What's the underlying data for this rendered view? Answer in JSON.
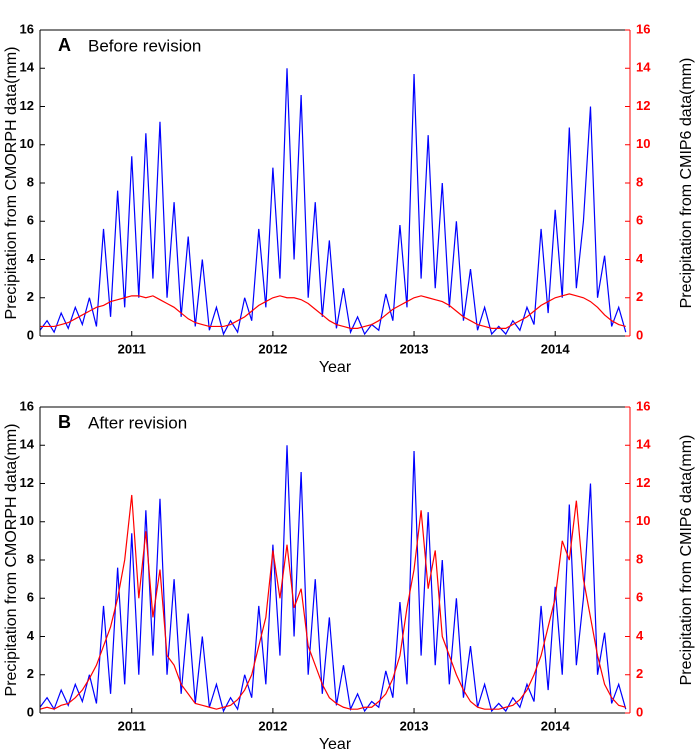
{
  "chart_data": [
    {
      "type": "line",
      "panel_label": "A",
      "title": "Before revision",
      "xlabel": "Year",
      "ylabel": "Precipitation from CMORPH data(mm)",
      "y2label": "Precipitation from CMIP6 data(mm)",
      "xlim": [
        2010.35,
        2014.53
      ],
      "xticks": [
        2011,
        2012,
        2013,
        2014
      ],
      "ylim": [
        0,
        16
      ],
      "yticks": [
        0,
        2,
        4,
        6,
        8,
        10,
        12,
        14,
        16
      ],
      "y2lim": [
        0,
        16
      ],
      "y2ticks": [
        0,
        2,
        4,
        6,
        8,
        10,
        12,
        14,
        16
      ],
      "x": [
        2010.35,
        2010.4,
        2010.45,
        2010.5,
        2010.55,
        2010.6,
        2010.65,
        2010.7,
        2010.75,
        2010.8,
        2010.85,
        2010.9,
        2010.95,
        2011.0,
        2011.05,
        2011.1,
        2011.15,
        2011.2,
        2011.25,
        2011.3,
        2011.35,
        2011.4,
        2011.45,
        2011.5,
        2011.55,
        2011.6,
        2011.65,
        2011.7,
        2011.75,
        2011.8,
        2011.85,
        2011.9,
        2011.95,
        2012.0,
        2012.05,
        2012.1,
        2012.15,
        2012.2,
        2012.25,
        2012.3,
        2012.35,
        2012.4,
        2012.45,
        2012.5,
        2012.55,
        2012.6,
        2012.65,
        2012.7,
        2012.75,
        2012.8,
        2012.85,
        2012.9,
        2012.95,
        2013.0,
        2013.05,
        2013.1,
        2013.15,
        2013.2,
        2013.25,
        2013.3,
        2013.35,
        2013.4,
        2013.45,
        2013.5,
        2013.55,
        2013.6,
        2013.65,
        2013.7,
        2013.75,
        2013.8,
        2013.85,
        2013.9,
        2013.95,
        2014.0,
        2014.05,
        2014.1,
        2014.15,
        2014.2,
        2014.25,
        2014.3,
        2014.35,
        2014.4,
        2014.45,
        2014.5
      ],
      "series": [
        {
          "color": "#0000ff",
          "axis": "y",
          "values": [
            0.3,
            0.8,
            0.2,
            1.2,
            0.4,
            1.5,
            0.6,
            2.0,
            0.5,
            5.6,
            1.0,
            7.6,
            1.5,
            9.4,
            2.0,
            10.6,
            3.0,
            11.2,
            2.0,
            7.0,
            1.0,
            5.2,
            0.5,
            4.0,
            0.3,
            1.5,
            0.1,
            0.8,
            0.2,
            2.0,
            0.8,
            5.6,
            1.5,
            8.8,
            3.0,
            14.0,
            4.0,
            12.6,
            2.0,
            7.0,
            1.0,
            5.0,
            0.4,
            2.5,
            0.2,
            1.0,
            0.1,
            0.6,
            0.3,
            2.2,
            0.8,
            5.8,
            1.5,
            13.7,
            3.0,
            10.5,
            2.5,
            8.0,
            1.5,
            6.0,
            0.8,
            3.5,
            0.3,
            1.5,
            0.1,
            0.5,
            0.1,
            0.8,
            0.3,
            1.5,
            0.6,
            5.6,
            1.2,
            6.6,
            2.0,
            10.9,
            2.5,
            6.0,
            12.0,
            2.0,
            4.2,
            0.5,
            1.5,
            0.2
          ]
        },
        {
          "color": "#ff0000",
          "axis": "y2",
          "values": [
            0.5,
            0.5,
            0.5,
            0.6,
            0.7,
            0.9,
            1.1,
            1.3,
            1.5,
            1.6,
            1.8,
            1.9,
            2.0,
            2.1,
            2.1,
            2.0,
            2.1,
            1.9,
            1.7,
            1.5,
            1.2,
            0.9,
            0.7,
            0.6,
            0.5,
            0.5,
            0.5,
            0.6,
            0.8,
            1.0,
            1.3,
            1.6,
            1.8,
            2.0,
            2.1,
            2.0,
            2.0,
            1.9,
            1.7,
            1.4,
            1.1,
            0.8,
            0.6,
            0.5,
            0.4,
            0.4,
            0.5,
            0.6,
            0.8,
            1.1,
            1.4,
            1.6,
            1.8,
            2.0,
            2.1,
            2.0,
            1.9,
            1.8,
            1.6,
            1.3,
            1.0,
            0.8,
            0.6,
            0.5,
            0.4,
            0.4,
            0.4,
            0.6,
            0.8,
            1.0,
            1.3,
            1.6,
            1.8,
            2.0,
            2.1,
            2.2,
            2.1,
            2.0,
            1.8,
            1.5,
            1.1,
            0.8,
            0.6,
            0.5
          ]
        }
      ]
    },
    {
      "type": "line",
      "panel_label": "B",
      "title": "After revision",
      "xlabel": "Year",
      "ylabel": "Precipitation from CMORPH data(mm)",
      "y2label": "Precipitation from CMIP6 data(mm)",
      "xlim": [
        2010.35,
        2014.53
      ],
      "xticks": [
        2011,
        2012,
        2013,
        2014
      ],
      "ylim": [
        0,
        16
      ],
      "yticks": [
        0,
        2,
        4,
        6,
        8,
        10,
        12,
        14,
        16
      ],
      "y2lim": [
        0,
        16
      ],
      "y2ticks": [
        0,
        2,
        4,
        6,
        8,
        10,
        12,
        14,
        16
      ],
      "x": [
        2010.35,
        2010.4,
        2010.45,
        2010.5,
        2010.55,
        2010.6,
        2010.65,
        2010.7,
        2010.75,
        2010.8,
        2010.85,
        2010.9,
        2010.95,
        2011.0,
        2011.05,
        2011.1,
        2011.15,
        2011.2,
        2011.25,
        2011.3,
        2011.35,
        2011.4,
        2011.45,
        2011.5,
        2011.55,
        2011.6,
        2011.65,
        2011.7,
        2011.75,
        2011.8,
        2011.85,
        2011.9,
        2011.95,
        2012.0,
        2012.05,
        2012.1,
        2012.15,
        2012.2,
        2012.25,
        2012.3,
        2012.35,
        2012.4,
        2012.45,
        2012.5,
        2012.55,
        2012.6,
        2012.65,
        2012.7,
        2012.75,
        2012.8,
        2012.85,
        2012.9,
        2012.95,
        2013.0,
        2013.05,
        2013.1,
        2013.15,
        2013.2,
        2013.25,
        2013.3,
        2013.35,
        2013.4,
        2013.45,
        2013.5,
        2013.55,
        2013.6,
        2013.65,
        2013.7,
        2013.75,
        2013.8,
        2013.85,
        2013.9,
        2013.95,
        2014.0,
        2014.05,
        2014.1,
        2014.15,
        2014.2,
        2014.25,
        2014.3,
        2014.35,
        2014.4,
        2014.45,
        2014.5
      ],
      "series": [
        {
          "color": "#0000ff",
          "axis": "y",
          "values": [
            0.3,
            0.8,
            0.2,
            1.2,
            0.4,
            1.5,
            0.6,
            2.0,
            0.5,
            5.6,
            1.0,
            7.6,
            1.5,
            9.4,
            2.0,
            10.6,
            3.0,
            11.2,
            2.0,
            7.0,
            1.0,
            5.2,
            0.5,
            4.0,
            0.3,
            1.5,
            0.1,
            0.8,
            0.2,
            2.0,
            0.8,
            5.6,
            1.5,
            8.8,
            3.0,
            14.0,
            4.0,
            12.6,
            2.0,
            7.0,
            1.0,
            5.0,
            0.4,
            2.5,
            0.2,
            1.0,
            0.1,
            0.6,
            0.3,
            2.2,
            0.8,
            5.8,
            1.5,
            13.7,
            3.0,
            10.5,
            2.5,
            8.0,
            1.5,
            6.0,
            0.8,
            3.5,
            0.3,
            1.5,
            0.1,
            0.5,
            0.1,
            0.8,
            0.3,
            1.5,
            0.6,
            5.6,
            1.2,
            6.6,
            2.0,
            10.9,
            2.5,
            6.0,
            12.0,
            2.0,
            4.2,
            0.5,
            1.5,
            0.2
          ]
        },
        {
          "color": "#ff0000",
          "axis": "y2",
          "values": [
            0.2,
            0.3,
            0.2,
            0.4,
            0.5,
            0.8,
            1.2,
            1.8,
            2.5,
            3.5,
            4.5,
            6.0,
            8.0,
            11.4,
            6.0,
            9.5,
            5.0,
            7.5,
            3.0,
            2.5,
            1.5,
            1.0,
            0.5,
            0.4,
            0.3,
            0.2,
            0.3,
            0.4,
            0.7,
            1.2,
            2.0,
            3.5,
            5.0,
            8.5,
            6.0,
            8.8,
            5.5,
            6.5,
            3.5,
            2.5,
            1.5,
            0.8,
            0.5,
            0.3,
            0.2,
            0.2,
            0.3,
            0.3,
            0.6,
            1.0,
            1.8,
            3.0,
            5.5,
            7.5,
            10.6,
            6.5,
            8.5,
            4.0,
            3.0,
            2.0,
            1.2,
            0.6,
            0.3,
            0.2,
            0.2,
            0.2,
            0.3,
            0.4,
            0.7,
            1.2,
            2.0,
            3.0,
            4.5,
            6.0,
            9.0,
            8.0,
            11.1,
            7.0,
            5.0,
            3.0,
            1.5,
            0.8,
            0.4,
            0.3
          ]
        }
      ]
    }
  ]
}
